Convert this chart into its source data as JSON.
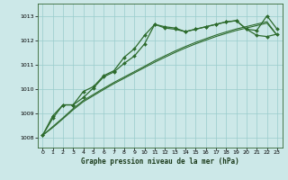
{
  "title": "Graphe pression niveau de la mer (hPa)",
  "bg_color": "#cce8e8",
  "grid_color": "#99cccc",
  "line_color": "#2d6b2d",
  "xlim": [
    -0.5,
    23.5
  ],
  "ylim": [
    1007.6,
    1013.5
  ],
  "xticks": [
    0,
    1,
    2,
    3,
    4,
    5,
    6,
    7,
    8,
    9,
    10,
    11,
    12,
    13,
    14,
    15,
    16,
    17,
    18,
    19,
    20,
    21,
    22,
    23
  ],
  "yticks": [
    1008,
    1009,
    1010,
    1011,
    1012,
    1013
  ],
  "series_markers": [
    [
      1008.1,
      1008.8,
      1009.35,
      1009.35,
      1009.65,
      1010.05,
      1010.5,
      1010.7,
      1011.05,
      1011.35,
      1011.85,
      1012.65,
      1012.55,
      1012.5,
      1012.35,
      1012.45,
      1012.55,
      1012.65,
      1012.75,
      1012.8,
      1012.45,
      1012.4,
      1013.0,
      1012.45
    ],
    [
      1008.1,
      1008.9,
      1009.35,
      1009.35,
      1009.9,
      1010.1,
      1010.55,
      1010.75,
      1011.3,
      1011.65,
      1012.2,
      1012.65,
      1012.5,
      1012.45,
      1012.35,
      1012.45,
      1012.55,
      1012.65,
      1012.75,
      1012.8,
      1012.45,
      1012.2,
      1012.15,
      1012.25
    ]
  ],
  "series_plain": [
    [
      1008.1,
      1008.42,
      1008.78,
      1009.15,
      1009.48,
      1009.73,
      1009.98,
      1010.22,
      1010.44,
      1010.66,
      1010.88,
      1011.1,
      1011.3,
      1011.5,
      1011.68,
      1011.85,
      1012.0,
      1012.15,
      1012.28,
      1012.4,
      1012.5,
      1012.6,
      1012.7,
      1012.2
    ],
    [
      1008.1,
      1008.46,
      1008.82,
      1009.2,
      1009.53,
      1009.78,
      1010.03,
      1010.27,
      1010.49,
      1010.71,
      1010.93,
      1011.16,
      1011.36,
      1011.56,
      1011.74,
      1011.91,
      1012.06,
      1012.21,
      1012.34,
      1012.46,
      1012.56,
      1012.66,
      1012.76,
      1012.2
    ]
  ]
}
